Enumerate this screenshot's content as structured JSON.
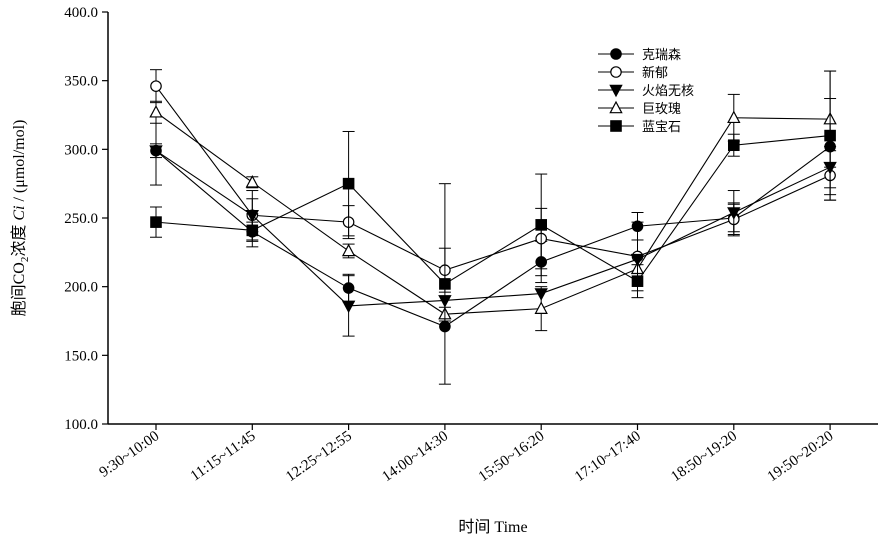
{
  "chart_data": {
    "type": "line",
    "xlabel": "时间 Time",
    "ylabel_parts": [
      "胞间CO",
      "2",
      "浓度 ",
      "Ci",
      " / (μmol/mol)"
    ],
    "ylim": [
      100,
      400
    ],
    "yticks": [
      100,
      150,
      200,
      250,
      300,
      350,
      400
    ],
    "ytick_labels": [
      "100.0",
      "150.0",
      "200.0",
      "250.0",
      "300.0",
      "350.0",
      "400.0"
    ],
    "categories": [
      "9:30~10:00",
      "11:15~11:45",
      "12:25~12:55",
      "14:00~14:30",
      "15:50~16:20",
      "17:10~17:40",
      "18:50~19:20",
      "19:50~20:20"
    ],
    "legend_position": "top-right",
    "grid": false,
    "series": [
      {
        "name": "克瑞森",
        "marker": "circle-filled",
        "values": [
          299,
          240,
          199,
          171,
          218,
          244,
          250,
          302
        ],
        "errors": [
          25,
          7,
          10,
          0,
          15,
          10,
          10,
          35
        ]
      },
      {
        "name": "新郁",
        "marker": "circle-open",
        "values": [
          346,
          252,
          247,
          212,
          235,
          222,
          249,
          281
        ],
        "errors": [
          12,
          12,
          12,
          16,
          22,
          25,
          12,
          18
        ]
      },
      {
        "name": "火焰无核",
        "marker": "triangle-down-filled",
        "values": [
          299,
          252,
          186,
          190,
          195,
          220,
          254,
          287
        ],
        "errors": [
          5,
          18,
          22,
          0,
          0,
          0,
          16,
          15
        ]
      },
      {
        "name": "巨玫瑰",
        "marker": "triangle-up-open",
        "values": [
          327,
          276,
          226,
          180,
          184,
          213,
          323,
          322
        ],
        "errors": [
          8,
          4,
          5,
          5,
          16,
          0,
          17,
          35
        ]
      },
      {
        "name": "蓝宝石",
        "marker": "square-filled",
        "values": [
          247,
          241,
          275,
          202,
          245,
          204,
          303,
          310
        ],
        "errors": [
          11,
          12,
          38,
          73,
          37,
          12,
          8,
          47
        ]
      }
    ]
  }
}
